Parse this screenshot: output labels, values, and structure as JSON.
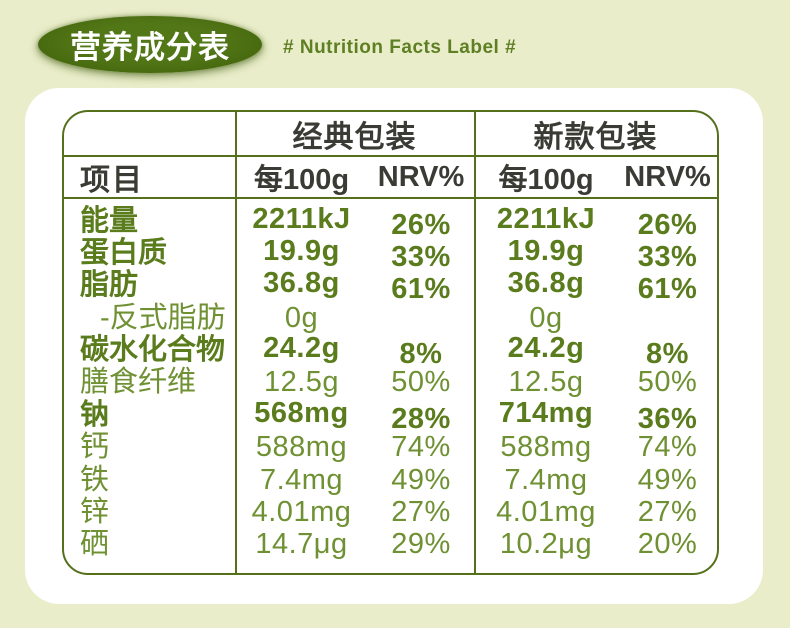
{
  "header": {
    "badge_text": "营养成分表",
    "subtitle": "# Nutrition Facts Label #"
  },
  "table": {
    "item_header": "项目",
    "columns": [
      {
        "package": "经典包装",
        "per": "每100g",
        "nrv": "NRV%"
      },
      {
        "package": "新款包装",
        "per": "每100g",
        "nrv": "NRV%"
      }
    ],
    "rows": [
      {
        "label": "能量",
        "emphasis": true,
        "indent": false,
        "cells": [
          {
            "value": "2211kJ",
            "nrv": "26%"
          },
          {
            "value": "2211kJ",
            "nrv": "26%"
          }
        ]
      },
      {
        "label": "蛋白质",
        "emphasis": true,
        "indent": false,
        "cells": [
          {
            "value": "19.9g",
            "nrv": "33%"
          },
          {
            "value": "19.9g",
            "nrv": "33%"
          }
        ]
      },
      {
        "label": "脂肪",
        "emphasis": true,
        "indent": false,
        "cells": [
          {
            "value": "36.8g",
            "nrv": "61%"
          },
          {
            "value": "36.8g",
            "nrv": "61%"
          }
        ]
      },
      {
        "label": "-反式脂肪",
        "emphasis": false,
        "indent": true,
        "cells": [
          {
            "value": "0g",
            "nrv": ""
          },
          {
            "value": "0g",
            "nrv": ""
          }
        ]
      },
      {
        "label": "碳水化合物",
        "emphasis": true,
        "indent": false,
        "cells": [
          {
            "value": "24.2g",
            "nrv": "8%"
          },
          {
            "value": "24.2g",
            "nrv": "8%"
          }
        ]
      },
      {
        "label": "膳食纤维",
        "emphasis": false,
        "indent": false,
        "cells": [
          {
            "value": "12.5g",
            "nrv": "50%"
          },
          {
            "value": "12.5g",
            "nrv": "50%"
          }
        ]
      },
      {
        "label": "钠",
        "emphasis": true,
        "indent": false,
        "cells": [
          {
            "value": "568mg",
            "nrv": "28%"
          },
          {
            "value": "714mg",
            "nrv": "36%"
          }
        ]
      },
      {
        "label": "钙",
        "emphasis": false,
        "indent": false,
        "cells": [
          {
            "value": "588mg",
            "nrv": "74%"
          },
          {
            "value": "588mg",
            "nrv": "74%"
          }
        ]
      },
      {
        "label": "铁",
        "emphasis": false,
        "indent": false,
        "cells": [
          {
            "value": "7.4mg",
            "nrv": "49%"
          },
          {
            "value": "7.4mg",
            "nrv": "49%"
          }
        ]
      },
      {
        "label": "锌",
        "emphasis": false,
        "indent": false,
        "cells": [
          {
            "value": "4.01mg",
            "nrv": "27%"
          },
          {
            "value": "4.01mg",
            "nrv": "27%"
          }
        ]
      },
      {
        "label": "硒",
        "emphasis": false,
        "indent": false,
        "cells": [
          {
            "value": "14.7μg",
            "nrv": "29%"
          },
          {
            "value": "10.2μg",
            "nrv": "20%"
          }
        ]
      }
    ]
  },
  "colors": {
    "background": "#e9edc9",
    "card": "#ffffff",
    "table_border": "#54701a",
    "header_text": "#3b3b35",
    "value_emphasis": "#5a7c1c",
    "value_regular": "#6f9133",
    "badge_fill": "#4a6c11",
    "subtitle_text": "#5e7f23"
  }
}
